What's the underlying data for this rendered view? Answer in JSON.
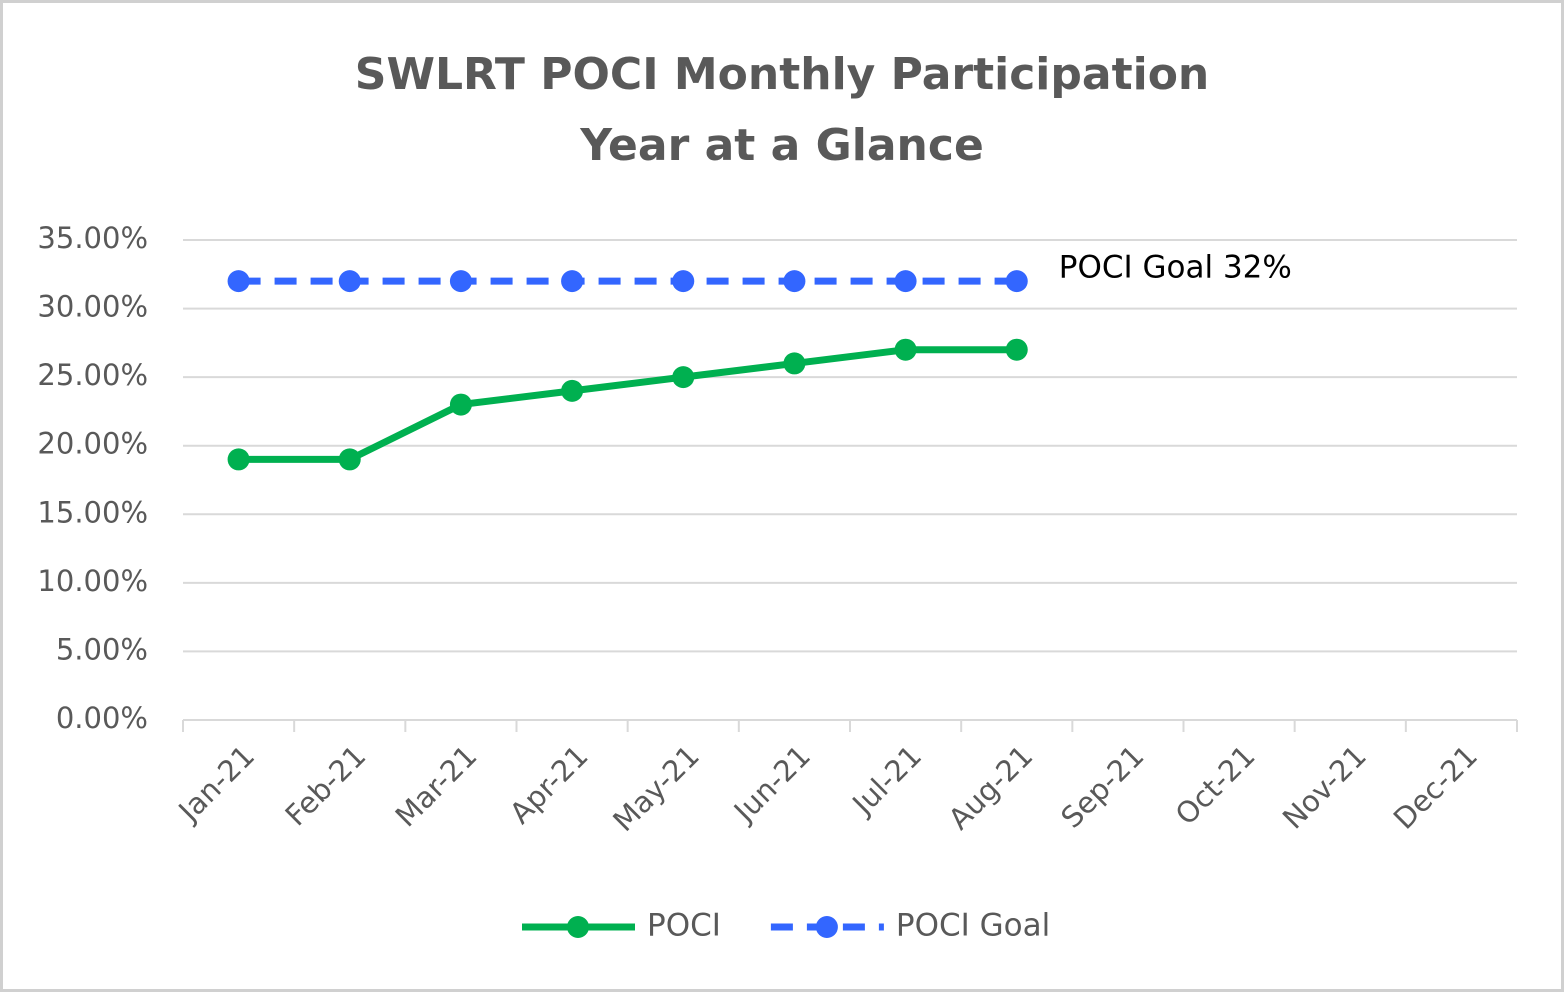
{
  "chart_data": {
    "type": "line",
    "title": "SWLRT POCI Monthly Participation",
    "subtitle": "Year at a Glance",
    "categories": [
      "Jan-21",
      "Feb-21",
      "Mar-21",
      "Apr-21",
      "May-21",
      "Jun-21",
      "Jul-21",
      "Aug-21",
      "Sep-21",
      "Oct-21",
      "Nov-21",
      "Dec-21"
    ],
    "series": [
      {
        "name": "POCI",
        "color": "#00b050",
        "dashed": false,
        "values": [
          19,
          19,
          23,
          24,
          25,
          26,
          27,
          27,
          null,
          null,
          null,
          null
        ]
      },
      {
        "name": "POCI Goal",
        "color": "#3366ff",
        "dashed": true,
        "values": [
          32,
          32,
          32,
          32,
          32,
          32,
          32,
          32,
          null,
          null,
          null,
          null
        ]
      }
    ],
    "annotations": [
      {
        "text": "POCI Goal 32%",
        "series": 1
      }
    ],
    "ylim": [
      0,
      35
    ],
    "yticks": [
      {
        "value": 0,
        "label": "0.00%"
      },
      {
        "value": 5,
        "label": "5.00%"
      },
      {
        "value": 10,
        "label": "10.00%"
      },
      {
        "value": 15,
        "label": "15.00%"
      },
      {
        "value": 20,
        "label": "20.00%"
      },
      {
        "value": 25,
        "label": "25.00%"
      },
      {
        "value": 30,
        "label": "30.00%"
      },
      {
        "value": 35,
        "label": "35.00%"
      }
    ],
    "grid": true,
    "legend": "bottom"
  }
}
